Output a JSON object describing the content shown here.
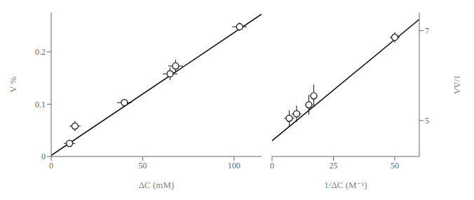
{
  "chart_data": [
    {
      "type": "scatter",
      "x_label": "ΔC (mM)",
      "y_label": "V %",
      "xlim": [
        0,
        115
      ],
      "ylim": [
        0,
        0.275
      ],
      "xticks": [
        0,
        50,
        100
      ],
      "yticks": [
        0,
        0.1,
        0.2
      ],
      "series": [
        {
          "type": "line",
          "color": "#111111",
          "x": [
            0,
            115
          ],
          "values": [
            0.002,
            0.272
          ]
        },
        {
          "type": "scatter",
          "color": "#111111",
          "marker": "circle",
          "x": [
            10,
            13,
            40,
            65,
            68,
            103
          ],
          "values": [
            0.025,
            0.058,
            0.103,
            0.158,
            0.173,
            0.248
          ],
          "xerr": [
            3,
            3,
            4,
            4,
            4,
            4
          ],
          "yerr": [
            0.006,
            0.01,
            0.007,
            0.012,
            0.012,
            0.008
          ]
        }
      ]
    },
    {
      "type": "scatter",
      "x_label": "1/ΔC (M⁻¹)",
      "y_label": "1/ΔA",
      "xlim": [
        0,
        60
      ],
      "ylim": [
        4.2,
        7.4
      ],
      "xticks": [
        0,
        25,
        50
      ],
      "yticks": [
        5,
        7
      ],
      "series": [
        {
          "type": "line",
          "color": "#111111",
          "x": [
            0,
            60
          ],
          "values": [
            4.55,
            7.25
          ]
        },
        {
          "type": "scatter",
          "color": "#111111",
          "marker": "circle",
          "x": [
            7,
            10,
            15,
            17,
            50
          ],
          "values": [
            5.05,
            5.15,
            5.35,
            5.55,
            6.85
          ],
          "xerr": [
            2.0,
            2.0,
            1.5,
            1.5,
            2
          ],
          "yerr": [
            0.18,
            0.18,
            0.22,
            0.25,
            0.12
          ]
        }
      ]
    }
  ]
}
